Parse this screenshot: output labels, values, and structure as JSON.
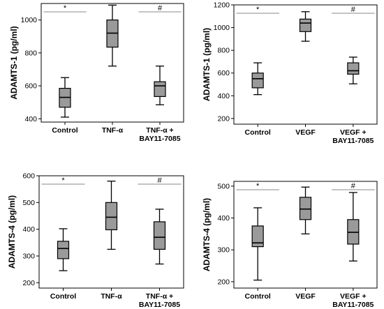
{
  "chart_data": [
    {
      "type": "box",
      "ylabel": "ADAMTS-1 (pg/ml)",
      "ylim": [
        380,
        1100
      ],
      "yticks": [
        400,
        600,
        800,
        1000
      ],
      "categories": [
        "Control",
        "TNF-α",
        "TNF-α +\nBAY11-7085"
      ],
      "boxes": [
        {
          "min": 410,
          "q1": 470,
          "median": 530,
          "q3": 585,
          "max": 650
        },
        {
          "min": 720,
          "q1": 835,
          "median": 920,
          "q3": 1000,
          "max": 1090
        },
        {
          "min": 485,
          "q1": 535,
          "median": 600,
          "q3": 625,
          "max": 720
        }
      ],
      "significance": [
        {
          "from": 0,
          "to": 1,
          "symbol": "*"
        },
        {
          "from": 1,
          "to": 2,
          "symbol": "#"
        }
      ]
    },
    {
      "type": "box",
      "ylabel": "ADAMTS-1 (pg/ml)",
      "ylim": [
        150,
        1200
      ],
      "yticks": [
        200,
        400,
        600,
        800,
        1000,
        1200
      ],
      "categories": [
        "Control",
        "VEGF",
        "VEGF +\nBAY11-7085"
      ],
      "boxes": [
        {
          "min": 410,
          "q1": 470,
          "median": 550,
          "q3": 600,
          "max": 690
        },
        {
          "min": 880,
          "q1": 965,
          "median": 1040,
          "q3": 1075,
          "max": 1140
        },
        {
          "min": 505,
          "q1": 590,
          "median": 620,
          "q3": 690,
          "max": 740
        }
      ],
      "significance": [
        {
          "from": 0,
          "to": 1,
          "symbol": "*"
        },
        {
          "from": 1,
          "to": 2,
          "symbol": "#"
        }
      ]
    },
    {
      "type": "box",
      "ylabel": "ADAMTS-4 (pg/ml)",
      "ylim": [
        180,
        600
      ],
      "yticks": [
        200,
        300,
        400,
        500,
        600
      ],
      "categories": [
        "Control",
        "TNF-α",
        "TNF-α +\nBAY11-7085"
      ],
      "boxes": [
        {
          "min": 245,
          "q1": 290,
          "median": 328,
          "q3": 355,
          "max": 402
        },
        {
          "min": 325,
          "q1": 398,
          "median": 445,
          "q3": 500,
          "max": 580
        },
        {
          "min": 270,
          "q1": 325,
          "median": 370,
          "q3": 428,
          "max": 475
        }
      ],
      "significance": [
        {
          "from": 0,
          "to": 1,
          "symbol": "*"
        },
        {
          "from": 1,
          "to": 2,
          "symbol": "#"
        }
      ]
    },
    {
      "type": "box",
      "ylabel": "ADAMTS-4 (pg/ml)",
      "ylim": [
        180,
        515
      ],
      "yticks": [
        200,
        300,
        400,
        500
      ],
      "categories": [
        "Control",
        "VEGF",
        "VEGF +\nBAY11-7085"
      ],
      "boxes": [
        {
          "min": 205,
          "q1": 310,
          "median": 322,
          "q3": 375,
          "max": 432
        },
        {
          "min": 350,
          "q1": 395,
          "median": 428,
          "q3": 465,
          "max": 497
        },
        {
          "min": 265,
          "q1": 318,
          "median": 355,
          "q3": 395,
          "max": 480
        }
      ],
      "significance": [
        {
          "from": 0,
          "to": 1,
          "symbol": "*"
        },
        {
          "from": 1,
          "to": 2,
          "symbol": "#"
        }
      ]
    }
  ],
  "colors": {
    "box_fill": "#9a9a9a",
    "line": "#000000",
    "sig_line": "#888888"
  }
}
